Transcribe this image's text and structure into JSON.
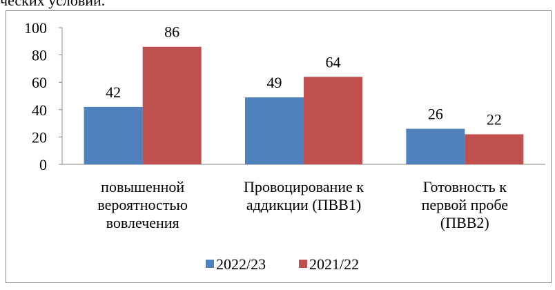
{
  "header_text": "ческих условий.",
  "chart_data": {
    "type": "bar",
    "categories": [
      "повышенной\nвероятностью\nвовлечения",
      "Провоцирование к\nаддикции (ПВВ1)",
      "Готовность к\nпервой пробе\n(ПВВ2)"
    ],
    "series": [
      {
        "name": "2022/23",
        "color": "#4f81bd",
        "values": [
          42,
          49,
          26
        ]
      },
      {
        "name": "2021/22",
        "color": "#c0504d",
        "values": [
          86,
          64,
          22
        ]
      }
    ],
    "ylim": [
      0,
      100
    ],
    "yticks": [
      0,
      20,
      40,
      60,
      80,
      100
    ],
    "grid": false,
    "legend": "bottom"
  }
}
